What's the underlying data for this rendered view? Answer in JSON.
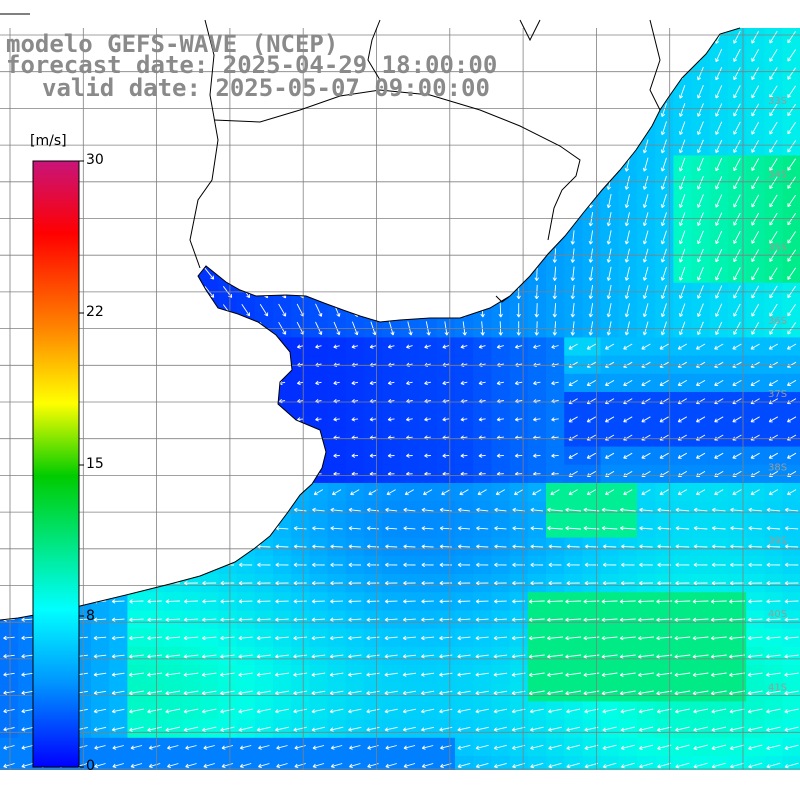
{
  "title": {
    "line1": "modelo GEFS-WAVE (NCEP)",
    "line2": "forecast date: 2025-04-29 18:00:00",
    "line3": "valid date: 2025-05-07 09:00:00"
  },
  "colorbar": {
    "unit": "[m/s]",
    "ticks": [
      "30",
      "22",
      "15",
      "8",
      "0"
    ],
    "tick_values": [
      30,
      22,
      15,
      8,
      0
    ]
  },
  "lat_labels": [
    "33S",
    "34S",
    "35S",
    "36S",
    "37S",
    "38S",
    "39S",
    "40S",
    "41S"
  ],
  "colors": {
    "land": "#ffffff",
    "coast": "#000000",
    "grid": "#808080",
    "arrow": "#ffffff"
  }
}
